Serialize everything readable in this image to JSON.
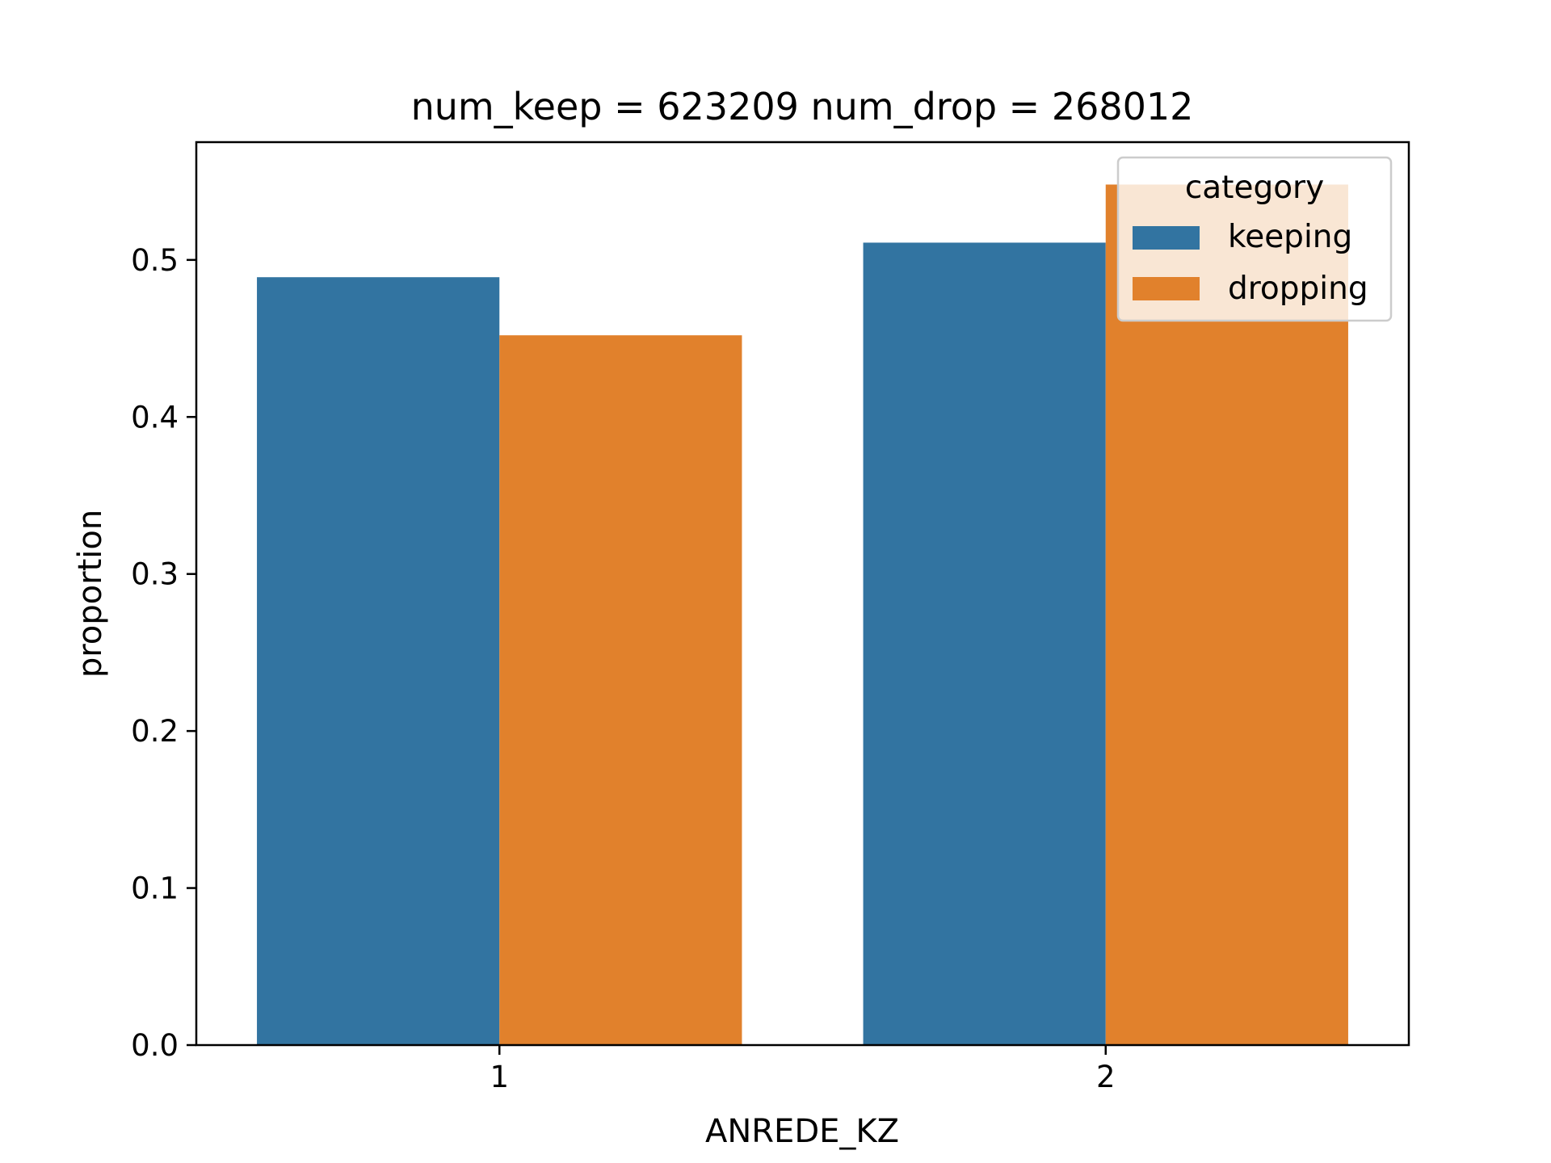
{
  "chart_data": {
    "type": "bar",
    "title": "num_keep = 623209  num_drop = 268012",
    "xlabel": "ANREDE_KZ",
    "ylabel": "proportion",
    "categories": [
      "1",
      "2"
    ],
    "series": [
      {
        "name": "keeping",
        "values": [
          0.489,
          0.511
        ],
        "color": "#3274a1"
      },
      {
        "name": "dropping",
        "values": [
          0.452,
          0.548
        ],
        "color": "#e1812c"
      }
    ],
    "ylim": [
      0,
      0.575
    ],
    "yticks": [
      "0.0",
      "0.1",
      "0.2",
      "0.3",
      "0.4",
      "0.5"
    ],
    "grid": false,
    "legend": {
      "title": "category",
      "placement": "upper-right"
    }
  }
}
